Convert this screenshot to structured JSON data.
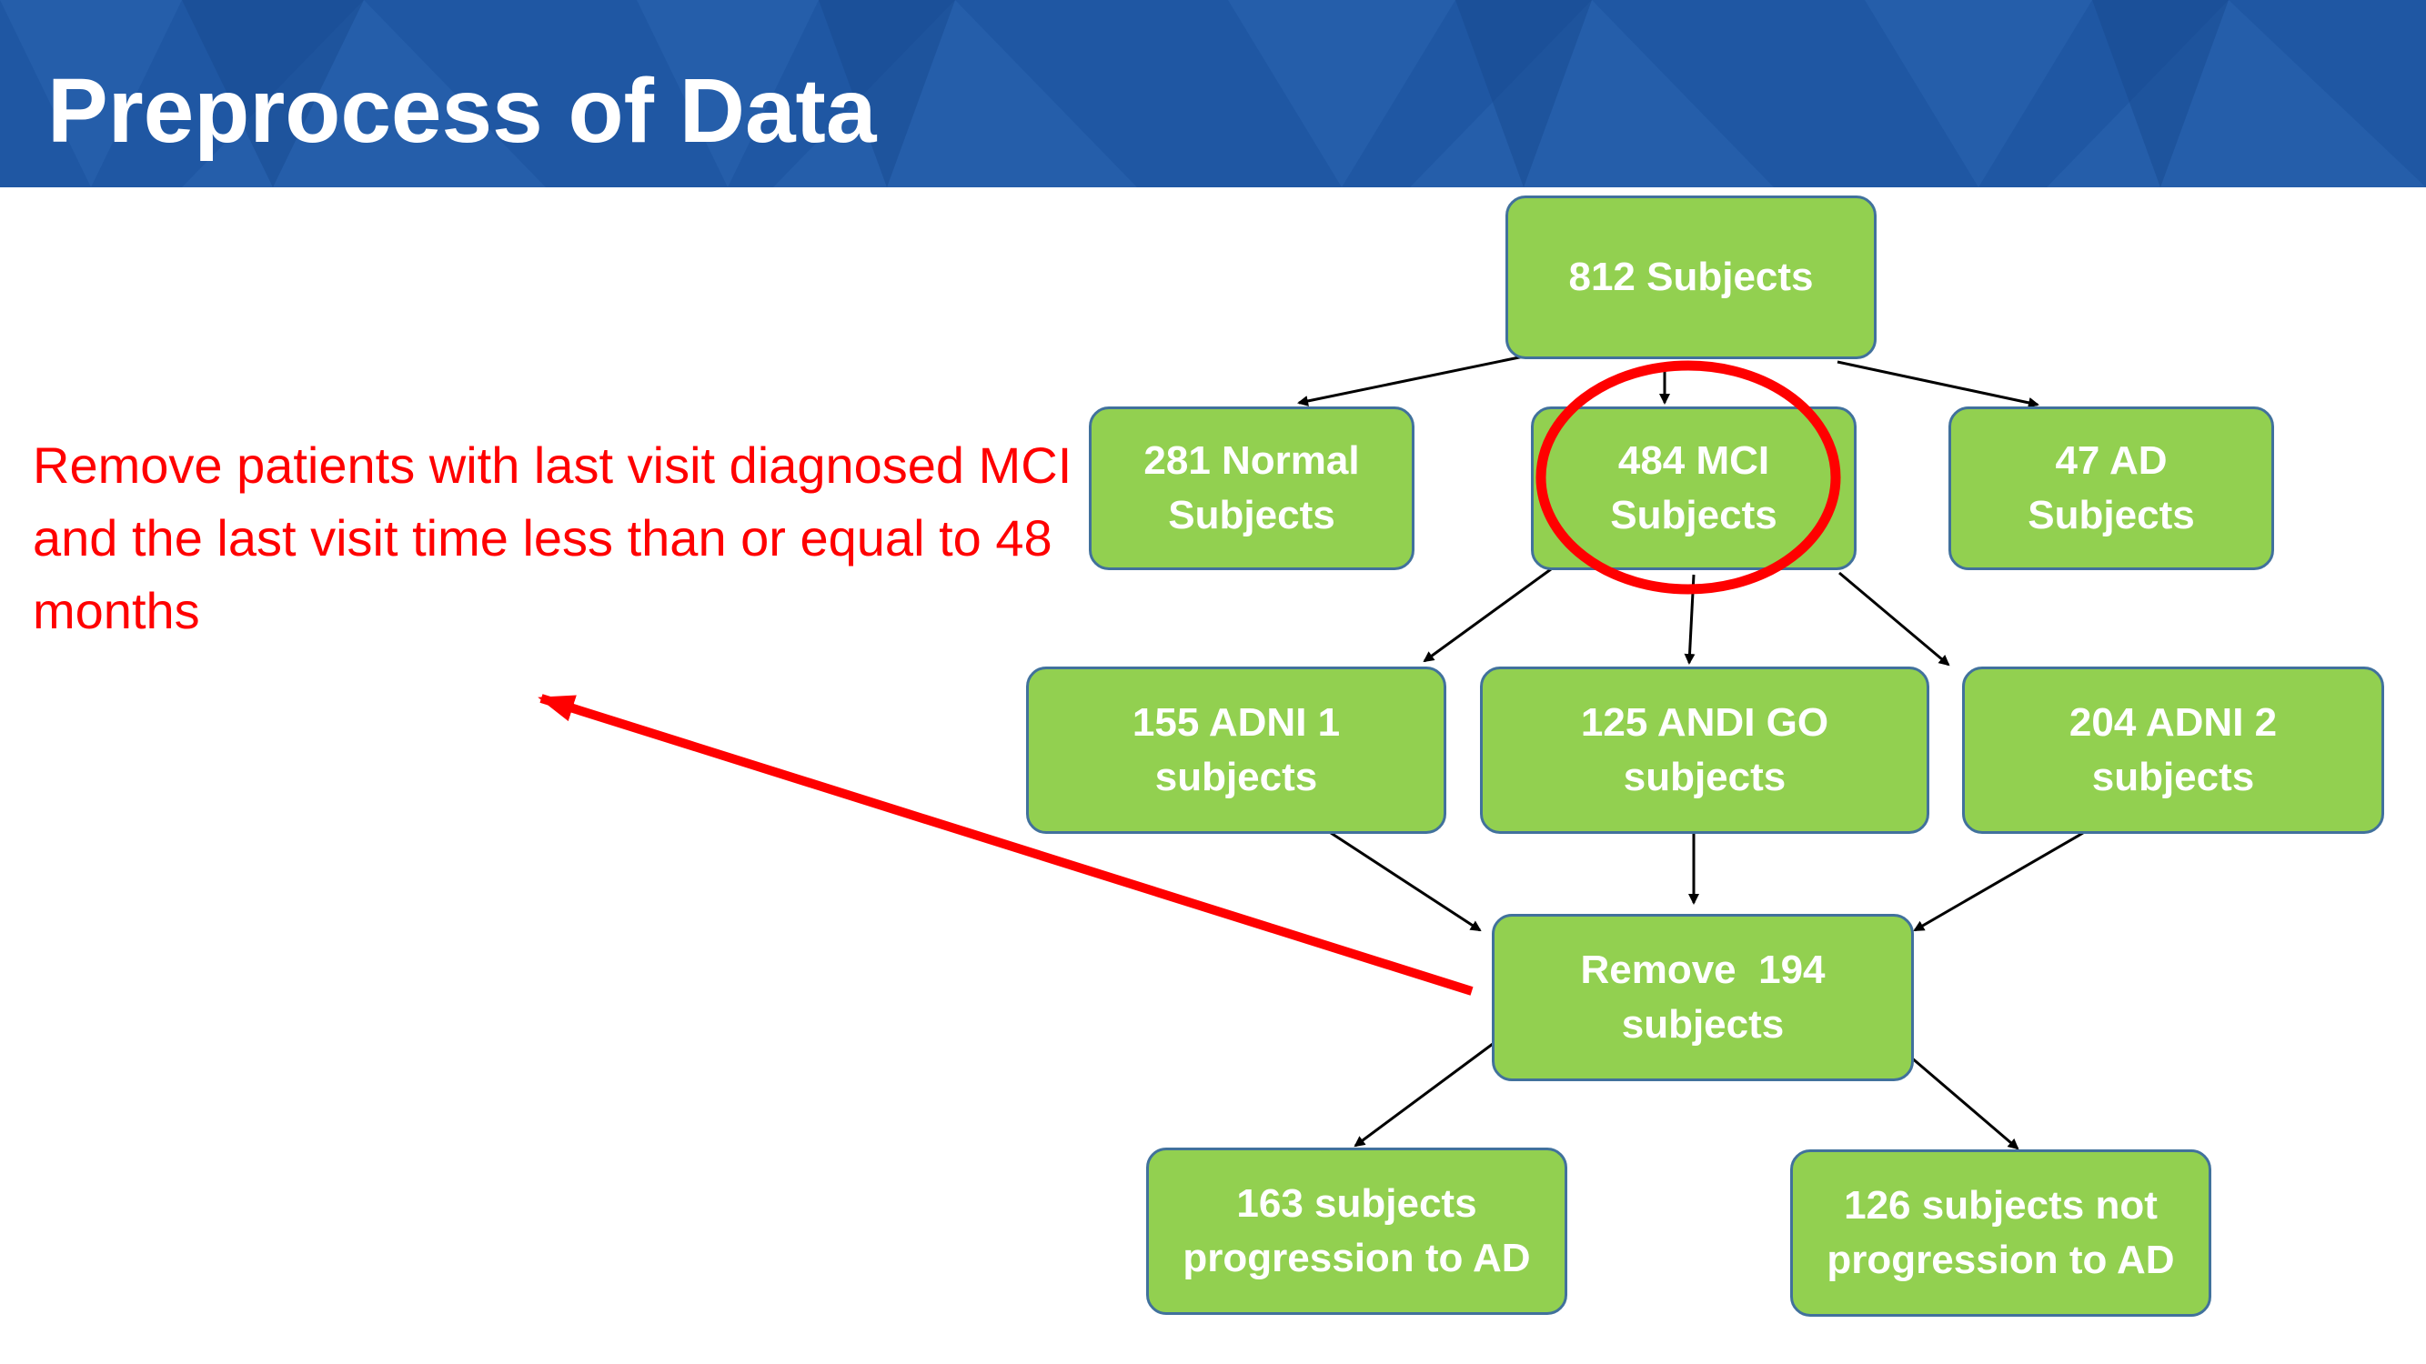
{
  "slide": {
    "title": "Preprocess of Data",
    "note": "Remove patients with last visit diagnosed MCI and the last visit time less than or equal to 48 months"
  },
  "nodes": {
    "total": {
      "line1": "812 Subjects",
      "line2": ""
    },
    "normal": {
      "line1": "281 Normal",
      "line2": "Subjects"
    },
    "mci": {
      "line1": "484 MCI",
      "line2": "Subjects"
    },
    "ad": {
      "line1": "47 AD",
      "line2": "Subjects"
    },
    "adni1": {
      "line1": "155 ADNI 1",
      "line2": "subjects"
    },
    "adnigo": {
      "line1": "125 ANDI GO",
      "line2": "subjects"
    },
    "adni2": {
      "line1": "204 ADNI 2",
      "line2": "subjects"
    },
    "remove": {
      "line1": "Remove  194",
      "line2": "subjects"
    },
    "progression": {
      "line1": "163 subjects",
      "line2": "progression to AD"
    },
    "no_progression": {
      "line1": "126 subjects not",
      "line2": "progression to AD"
    }
  },
  "colors": {
    "header": "#1f57a3",
    "box_fill": "#92d050",
    "box_border": "#41719c",
    "highlight": "#ff0000"
  }
}
